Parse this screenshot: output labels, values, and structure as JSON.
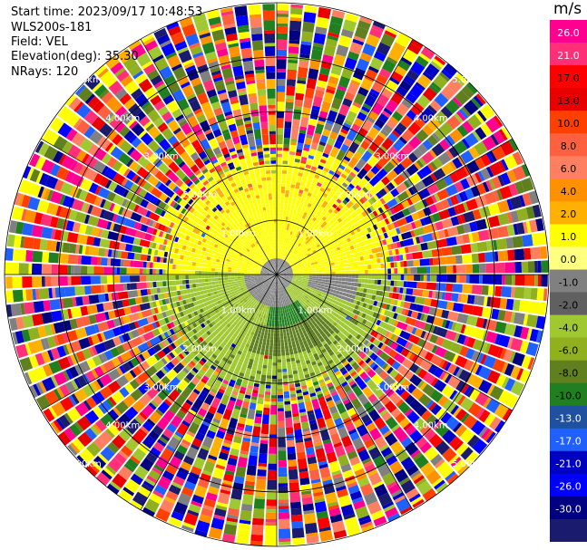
{
  "header": {
    "start_time": "Start time: 2023/09/17 10:48:53",
    "instrument": "WLS200s-181",
    "field": "Field: VEL",
    "elevation": "Elevation(deg): 35.30",
    "nrays": "NRays: 120"
  },
  "chart_data": {
    "type": "polar-ppi",
    "title": "",
    "field": "VEL",
    "units": "m/s",
    "n_rays": 120,
    "elevation_deg": 35.3,
    "range_max_km": 5.0,
    "range_rings_km": [
      1,
      2,
      3,
      4,
      5
    ],
    "range_ring_labels": [
      "1.00km",
      "2.00km",
      "3.00km",
      "4.00km",
      "5.00km"
    ],
    "spoke_angles_deg": [
      0,
      30,
      60,
      90,
      120,
      150,
      180,
      210,
      240,
      270,
      300,
      330
    ],
    "colorbar": {
      "ticks": [
        "26.0",
        "21.0",
        "17.0",
        "13.0",
        "10.0",
        "8.0",
        "6.0",
        "4.0",
        "2.0",
        "1.0",
        "0.0",
        "-1.0",
        "-2.0",
        "-4.0",
        "-6.0",
        "-8.0",
        "-10.0",
        "-13.0",
        "-17.0",
        "-21.0",
        "-26.0",
        "-30.0"
      ],
      "colors": [
        "#ff0090",
        "#ff3078",
        "#ff0000",
        "#e80000",
        "#ff4000",
        "#ff6040",
        "#ff8060",
        "#ff9000",
        "#ffb000",
        "#ffff00",
        "#ffff80",
        "#808080",
        "#606060",
        "#a0c830",
        "#90b020",
        "#608020",
        "#208020",
        "#2050a0",
        "#2060ff",
        "#0000c0",
        "#0000ff",
        "#000080",
        "#1a1a6e"
      ]
    },
    "regions": [
      {
        "range_km": [
          0,
          0.25
        ],
        "description_value": 0.0
      },
      {
        "range_km": [
          0.25,
          1.5
        ],
        "north_value": 2.0,
        "south_value": -4.0
      },
      {
        "range_km": [
          1.5,
          2.0
        ],
        "north_value": 2.0,
        "south_value": -2.0
      },
      {
        "range_km": [
          2.0,
          5.0
        ],
        "value": "noise"
      }
    ]
  }
}
